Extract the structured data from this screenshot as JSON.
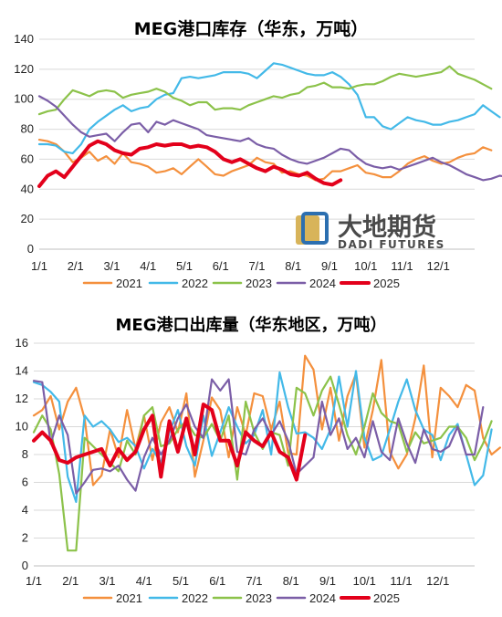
{
  "watermark": {
    "cn": "大地期货",
    "en": "DADI FUTURES"
  },
  "chart_data": [
    {
      "type": "line",
      "title": "MEG港口库存（华东，万吨）",
      "ylim": [
        0,
        140
      ],
      "yticks": [
        "0",
        "20",
        "40",
        "60",
        "80",
        "100",
        "120",
        "140"
      ],
      "xticks": [
        "1/1",
        "2/1",
        "3/1",
        "4/1",
        "5/1",
        "6/1",
        "7/1",
        "8/1",
        "9/1",
        "10/1",
        "11/1",
        "12/1"
      ],
      "x_unit": "week",
      "grid": true,
      "legend_position": "bottom",
      "series": [
        {
          "name": "2021",
          "color": "#f4903d",
          "values": [
            73,
            72,
            70,
            65,
            58,
            61,
            65,
            59,
            62,
            57,
            64,
            58,
            57,
            55,
            51,
            52,
            54,
            50,
            55,
            60,
            55,
            50,
            49,
            52,
            54,
            56,
            61,
            58,
            57,
            51,
            52,
            50,
            49,
            46,
            47,
            52,
            52,
            54,
            56,
            51,
            50,
            48,
            48,
            52,
            57,
            60,
            62,
            59,
            57,
            58,
            61,
            63,
            64,
            68,
            66
          ]
        },
        {
          "name": "2022",
          "color": "#43b9e8",
          "values": [
            70,
            70,
            69,
            65,
            64,
            70,
            80,
            85,
            89,
            93,
            96,
            92,
            94,
            95,
            100,
            103,
            104,
            114,
            115,
            114,
            115,
            116,
            118,
            118,
            118,
            117,
            114,
            119,
            124,
            123,
            121,
            119,
            117,
            116,
            116,
            118,
            115,
            110,
            103,
            88,
            88,
            82,
            80,
            84,
            88,
            86,
            85,
            83,
            83,
            85,
            86,
            88,
            90,
            96,
            92,
            88
          ]
        },
        {
          "name": "2023",
          "color": "#8cc24a",
          "values": [
            90,
            92,
            93,
            100,
            106,
            104,
            102,
            105,
            106,
            105,
            101,
            103,
            104,
            105,
            107,
            105,
            101,
            99,
            96,
            98,
            98,
            93,
            94,
            94,
            93,
            96,
            98,
            100,
            102,
            101,
            103,
            104,
            108,
            109,
            111,
            108,
            108,
            107,
            109,
            110,
            110,
            112,
            115,
            117,
            116,
            115,
            116,
            117,
            118,
            122,
            117,
            115,
            113,
            110,
            107
          ]
        },
        {
          "name": "2024",
          "color": "#7b5ea7",
          "values": [
            102,
            99,
            95,
            89,
            83,
            78,
            75,
            76,
            77,
            72,
            78,
            83,
            84,
            78,
            85,
            83,
            86,
            84,
            82,
            80,
            76,
            75,
            74,
            73,
            72,
            74,
            70,
            68,
            67,
            63,
            60,
            58,
            57,
            59,
            61,
            64,
            67,
            66,
            61,
            57,
            55,
            54,
            55,
            53,
            55,
            57,
            59,
            61,
            58,
            56,
            53,
            50,
            48,
            46,
            47,
            49,
            48,
            47
          ]
        },
        {
          "name": "2025",
          "color": "#e3001b",
          "values": [
            42,
            49,
            52,
            48,
            55,
            62,
            69,
            72,
            70,
            66,
            64,
            63,
            67,
            68,
            70,
            69,
            70,
            70,
            68,
            69,
            68,
            65,
            60,
            58,
            60,
            57,
            54,
            52,
            55,
            53,
            50,
            49,
            51,
            47,
            44,
            43,
            46
          ]
        }
      ]
    },
    {
      "type": "line",
      "title": "MEG港口出库量（华东地区，万吨）",
      "ylim": [
        0,
        16
      ],
      "yticks": [
        "0",
        "2",
        "4",
        "6",
        "8",
        "10",
        "12",
        "14",
        "16"
      ],
      "xticks": [
        "1/1",
        "2/1",
        "3/1",
        "4/1",
        "5/1",
        "6/1",
        "7/1",
        "8/1",
        "9/1",
        "10/1",
        "11/1",
        "12/1"
      ],
      "x_unit": "week",
      "grid": true,
      "legend_position": "bottom",
      "series": [
        {
          "name": "2021",
          "color": "#f4903d",
          "values": [
            10.8,
            11.2,
            12.2,
            9.8,
            11.8,
            12.8,
            10.6,
            5.8,
            6.5,
            9.8,
            7.8,
            11.2,
            8.4,
            10.8,
            7.6,
            10.3,
            11.4,
            9.6,
            12.4,
            6.4,
            9.0,
            12.1,
            11.2,
            7.8,
            11.4,
            9.4,
            12.4,
            12.2,
            9.8,
            11.8,
            8.1,
            8.0,
            15.1,
            14.1,
            9.8,
            12.8,
            9.0,
            12.2,
            13.8,
            8.5,
            11.2,
            14.8,
            8.2,
            7.0,
            8.0,
            10.6,
            14.4,
            7.8,
            12.8,
            12.2,
            11.4,
            13.0,
            12.6,
            9.2,
            8.0,
            8.5
          ]
        },
        {
          "name": "2022",
          "color": "#43b9e8",
          "values": [
            13.2,
            13.0,
            12.5,
            11.8,
            6.4,
            4.6,
            10.8,
            10.0,
            10.4,
            9.8,
            8.9,
            9.2,
            8.6,
            7.0,
            8.4,
            7.4,
            9.6,
            11.2,
            8.6,
            7.2,
            10.8,
            7.9,
            9.6,
            11.4,
            10.0,
            8.8,
            9.4,
            11.2,
            8.0,
            13.9,
            11.4,
            9.5,
            9.6,
            9.2,
            8.4,
            9.8,
            13.6,
            10.0,
            14.0,
            9.2,
            7.6,
            7.9,
            9.8,
            11.8,
            13.4,
            11.2,
            9.8,
            9.4,
            7.6,
            9.4,
            10.2,
            8.0,
            5.8,
            6.5,
            9.8
          ]
        },
        {
          "name": "2023",
          "color": "#8cc24a",
          "values": [
            9.6,
            10.8,
            9.8,
            6.6,
            1.1,
            1.1,
            9.2,
            8.6,
            8.0,
            7.4,
            6.8,
            9.0,
            8.0,
            10.8,
            11.4,
            8.6,
            8.8,
            9.8,
            10.4,
            9.4,
            9.2,
            10.2,
            9.0,
            10.8,
            6.2,
            11.8,
            9.6,
            8.4,
            9.6,
            9.4,
            7.2,
            12.8,
            12.4,
            10.8,
            12.6,
            13.6,
            11.6,
            9.4,
            8.0,
            10.0,
            12.4,
            11.0,
            10.4,
            10.2,
            8.2,
            9.6,
            8.8,
            9.0,
            9.2,
            10.0,
            10.0,
            9.2,
            7.6,
            8.8,
            10.4
          ]
        },
        {
          "name": "2024",
          "color": "#7b5ea7",
          "values": [
            13.3,
            13.2,
            8.8,
            10.8,
            9.4,
            5.2,
            6.0,
            6.9,
            7.0,
            6.8,
            7.2,
            6.2,
            5.4,
            7.8,
            9.2,
            8.0,
            9.0,
            10.6,
            11.6,
            10.0,
            9.2,
            13.4,
            12.6,
            13.4,
            8.2,
            8.0,
            9.8,
            10.6,
            9.4,
            10.4,
            9.0,
            6.6,
            7.2,
            7.8,
            11.8,
            9.4,
            10.6,
            8.4,
            9.2,
            7.8,
            10.4,
            8.2,
            7.6,
            10.6,
            8.8,
            7.4,
            9.8,
            8.4,
            8.2,
            8.6,
            10.0,
            8.0,
            8.0,
            11.4
          ]
        },
        {
          "name": "2025",
          "color": "#e3001b",
          "values": [
            9.0,
            9.6,
            9.0,
            7.6,
            7.4,
            7.8,
            8.0,
            8.2,
            8.4,
            7.2,
            8.4,
            7.6,
            8.2,
            9.8,
            10.8,
            6.4,
            10.4,
            8.2,
            10.6,
            8.0,
            11.6,
            11.2,
            9.0,
            9.0,
            7.2,
            9.6,
            9.0,
            8.6,
            9.6,
            8.2,
            7.8,
            6.2,
            9.4
          ]
        }
      ]
    }
  ]
}
